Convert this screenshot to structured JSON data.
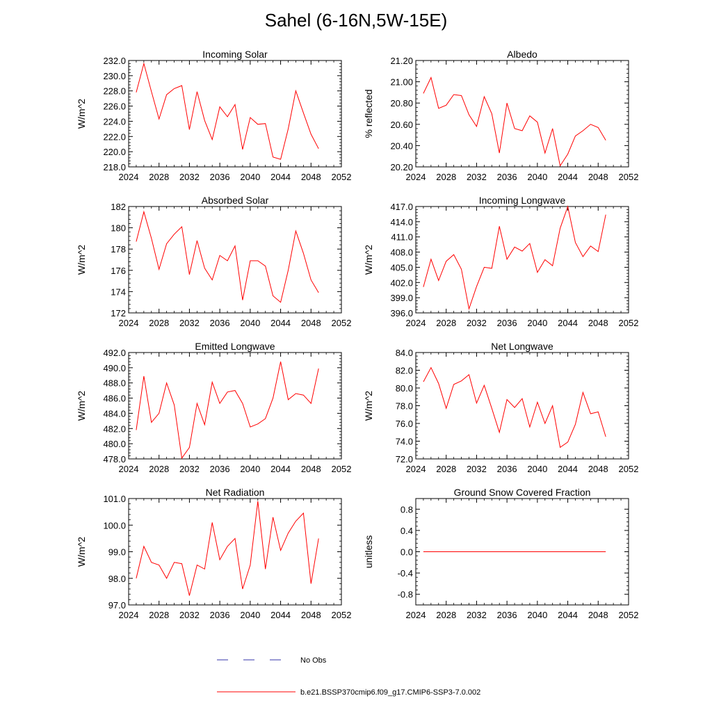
{
  "title": "Sahel (6-16N,5W-15E)",
  "colors": {
    "model": "#ff0000",
    "obs": "#3333aa",
    "axis": "#000000"
  },
  "legend": {
    "obs_label": "No Obs",
    "model_label": "b.e21.BSSP370cmip6.f09_g17.CMIP6-SSP3-7.0.002"
  },
  "chart_data": [
    {
      "type": "line",
      "title": "Incoming Solar",
      "ylabel": "W/m^2",
      "xlim": [
        2024,
        2052
      ],
      "ylim": [
        218,
        232
      ],
      "xticks": [
        2024,
        2028,
        2032,
        2036,
        2040,
        2044,
        2048,
        2052
      ],
      "yticks": [
        218,
        220,
        222,
        224,
        226,
        228,
        230,
        232
      ],
      "ytick_labels": [
        "218.0",
        "220.0",
        "222.0",
        "224.0",
        "226.0",
        "228.0",
        "230.0",
        "232.0"
      ],
      "x": [
        2025,
        2026,
        2027,
        2028,
        2029,
        2030,
        2031,
        2032,
        2033,
        2034,
        2035,
        2036,
        2037,
        2038,
        2039,
        2040,
        2041,
        2042,
        2043,
        2044,
        2045,
        2046,
        2047,
        2048,
        2049
      ],
      "values": [
        227.8,
        231.6,
        227.9,
        224.3,
        227.5,
        228.3,
        228.7,
        222.9,
        227.9,
        224.1,
        221.6,
        225.9,
        224.6,
        226.2,
        220.3,
        224.5,
        223.6,
        223.7,
        219.3,
        219.0,
        223.0,
        228.0,
        225.1,
        222.3,
        220.4
      ]
    },
    {
      "type": "line",
      "title": "Albedo",
      "ylabel": "% reflected",
      "xlim": [
        2024,
        2052
      ],
      "ylim": [
        20.2,
        21.2
      ],
      "xticks": [
        2024,
        2028,
        2032,
        2036,
        2040,
        2044,
        2048,
        2052
      ],
      "yticks": [
        20.2,
        20.4,
        20.6,
        20.8,
        21.0,
        21.2
      ],
      "ytick_labels": [
        "20.20",
        "20.40",
        "20.60",
        "20.80",
        "21.00",
        "21.20"
      ],
      "x": [
        2025,
        2026,
        2027,
        2028,
        2029,
        2030,
        2031,
        2032,
        2033,
        2034,
        2035,
        2036,
        2037,
        2038,
        2039,
        2040,
        2041,
        2042,
        2043,
        2044,
        2045,
        2046,
        2047,
        2048,
        2049
      ],
      "values": [
        20.89,
        21.04,
        20.75,
        20.78,
        20.88,
        20.87,
        20.69,
        20.58,
        20.86,
        20.7,
        20.33,
        20.8,
        20.56,
        20.54,
        20.68,
        20.62,
        20.33,
        20.56,
        20.21,
        20.32,
        20.49,
        20.54,
        20.6,
        20.57,
        20.45
      ]
    },
    {
      "type": "line",
      "title": "Absorbed Solar",
      "ylabel": "W/m^2",
      "xlim": [
        2024,
        2052
      ],
      "ylim": [
        172,
        182
      ],
      "xticks": [
        2024,
        2028,
        2032,
        2036,
        2040,
        2044,
        2048,
        2052
      ],
      "yticks": [
        172,
        174,
        176,
        178,
        180,
        182
      ],
      "ytick_labels": [
        "172",
        "174",
        "176",
        "178",
        "180",
        "182"
      ],
      "x": [
        2025,
        2026,
        2027,
        2028,
        2029,
        2030,
        2031,
        2032,
        2033,
        2034,
        2035,
        2036,
        2037,
        2038,
        2039,
        2040,
        2041,
        2042,
        2043,
        2044,
        2045,
        2046,
        2047,
        2048,
        2049
      ],
      "values": [
        178.7,
        181.5,
        179.0,
        176.1,
        178.5,
        179.4,
        180.1,
        175.6,
        178.8,
        176.2,
        175.1,
        177.4,
        176.9,
        178.3,
        173.2,
        176.9,
        176.9,
        176.4,
        173.6,
        173.0,
        176.0,
        179.7,
        177.6,
        175.1,
        173.9
      ]
    },
    {
      "type": "line",
      "title": "Incoming Longwave",
      "ylabel": "W/m^2",
      "xlim": [
        2024,
        2052
      ],
      "ylim": [
        396,
        417
      ],
      "xticks": [
        2024,
        2028,
        2032,
        2036,
        2040,
        2044,
        2048,
        2052
      ],
      "yticks": [
        396,
        399,
        402,
        405,
        408,
        411,
        414,
        417
      ],
      "ytick_labels": [
        "396.0",
        "399.0",
        "402.0",
        "405.0",
        "408.0",
        "411.0",
        "414.0",
        "417.0"
      ],
      "x": [
        2025,
        2026,
        2027,
        2028,
        2029,
        2030,
        2031,
        2032,
        2033,
        2034,
        2035,
        2036,
        2037,
        2038,
        2039,
        2040,
        2041,
        2042,
        2043,
        2044,
        2045,
        2046,
        2047,
        2048,
        2049
      ],
      "values": [
        401.1,
        406.6,
        402.4,
        406.2,
        407.5,
        404.6,
        396.8,
        401.2,
        405.0,
        404.8,
        413.1,
        406.6,
        409.0,
        408.2,
        409.7,
        404.0,
        406.5,
        405.3,
        412.7,
        417.0,
        409.9,
        407.1,
        409.2,
        408.1,
        415.4
      ]
    },
    {
      "type": "line",
      "title": "Emitted Longwave",
      "ylabel": "W/m^2",
      "xlim": [
        2024,
        2052
      ],
      "ylim": [
        478,
        492
      ],
      "xticks": [
        2024,
        2028,
        2032,
        2036,
        2040,
        2044,
        2048,
        2052
      ],
      "yticks": [
        478,
        480,
        482,
        484,
        486,
        488,
        490,
        492
      ],
      "ytick_labels": [
        "478.0",
        "480.0",
        "482.0",
        "484.0",
        "486.0",
        "488.0",
        "490.0",
        "492.0"
      ],
      "x": [
        2025,
        2026,
        2027,
        2028,
        2029,
        2030,
        2031,
        2032,
        2033,
        2034,
        2035,
        2036,
        2037,
        2038,
        2039,
        2040,
        2041,
        2042,
        2043,
        2044,
        2045,
        2046,
        2047,
        2048,
        2049
      ],
      "values": [
        481.8,
        488.9,
        482.8,
        484.0,
        488.0,
        485.1,
        478.1,
        479.5,
        485.3,
        482.5,
        488.1,
        485.3,
        486.8,
        487.0,
        485.3,
        482.2,
        482.6,
        483.3,
        486.0,
        490.8,
        485.8,
        486.6,
        486.4,
        485.3,
        489.9
      ]
    },
    {
      "type": "line",
      "title": "Net Longwave",
      "ylabel": "W/m^2",
      "xlim": [
        2024,
        2052
      ],
      "ylim": [
        72,
        84
      ],
      "xticks": [
        2024,
        2028,
        2032,
        2036,
        2040,
        2044,
        2048,
        2052
      ],
      "yticks": [
        72,
        74,
        76,
        78,
        80,
        82,
        84
      ],
      "ytick_labels": [
        "72.0",
        "74.0",
        "76.0",
        "78.0",
        "80.0",
        "82.0",
        "84.0"
      ],
      "x": [
        2025,
        2026,
        2027,
        2028,
        2029,
        2030,
        2031,
        2032,
        2033,
        2034,
        2035,
        2036,
        2037,
        2038,
        2039,
        2040,
        2041,
        2042,
        2043,
        2044,
        2045,
        2046,
        2047,
        2048,
        2049
      ],
      "values": [
        80.7,
        82.3,
        80.5,
        77.7,
        80.4,
        80.8,
        81.5,
        78.3,
        80.3,
        77.7,
        75.0,
        78.7,
        77.8,
        78.8,
        75.6,
        78.4,
        76.0,
        78.0,
        73.3,
        73.9,
        75.9,
        79.5,
        77.1,
        77.3,
        74.5
      ]
    },
    {
      "type": "line",
      "title": "Net Radiation",
      "ylabel": "W/m^2",
      "xlim": [
        2024,
        2052
      ],
      "ylim": [
        97,
        101
      ],
      "xticks": [
        2024,
        2028,
        2032,
        2036,
        2040,
        2044,
        2048,
        2052
      ],
      "yticks": [
        97,
        98,
        99,
        100,
        101
      ],
      "ytick_labels": [
        "97.0",
        "98.0",
        "99.0",
        "100.0",
        "101.0"
      ],
      "x": [
        2025,
        2026,
        2027,
        2028,
        2029,
        2030,
        2031,
        2032,
        2033,
        2034,
        2035,
        2036,
        2037,
        2038,
        2039,
        2040,
        2041,
        2042,
        2043,
        2044,
        2045,
        2046,
        2047,
        2048,
        2049
      ],
      "values": [
        98.0,
        99.2,
        98.6,
        98.5,
        98.0,
        98.6,
        98.55,
        97.35,
        98.5,
        98.35,
        100.1,
        98.7,
        99.2,
        99.5,
        97.6,
        98.5,
        100.9,
        98.35,
        100.3,
        99.05,
        99.7,
        100.15,
        100.45,
        97.8,
        99.5
      ]
    },
    {
      "type": "line",
      "title": "Ground Snow Covered Fraction",
      "ylabel": "unitless",
      "xlim": [
        2024,
        2052
      ],
      "ylim": [
        -1,
        1
      ],
      "xticks": [
        2024,
        2028,
        2032,
        2036,
        2040,
        2044,
        2048,
        2052
      ],
      "yticks": [
        -0.8,
        -0.4,
        0.0,
        0.4,
        0.8
      ],
      "ytick_labels": [
        "-0.8",
        "-0.4",
        "0.0",
        "0.4",
        "0.8"
      ],
      "x": [
        2025,
        2026,
        2027,
        2028,
        2029,
        2030,
        2031,
        2032,
        2033,
        2034,
        2035,
        2036,
        2037,
        2038,
        2039,
        2040,
        2041,
        2042,
        2043,
        2044,
        2045,
        2046,
        2047,
        2048,
        2049
      ],
      "values": [
        0,
        0,
        0,
        0,
        0,
        0,
        0,
        0,
        0,
        0,
        0,
        0,
        0,
        0,
        0,
        0,
        0,
        0,
        0,
        0,
        0,
        0,
        0,
        0,
        0
      ]
    }
  ]
}
